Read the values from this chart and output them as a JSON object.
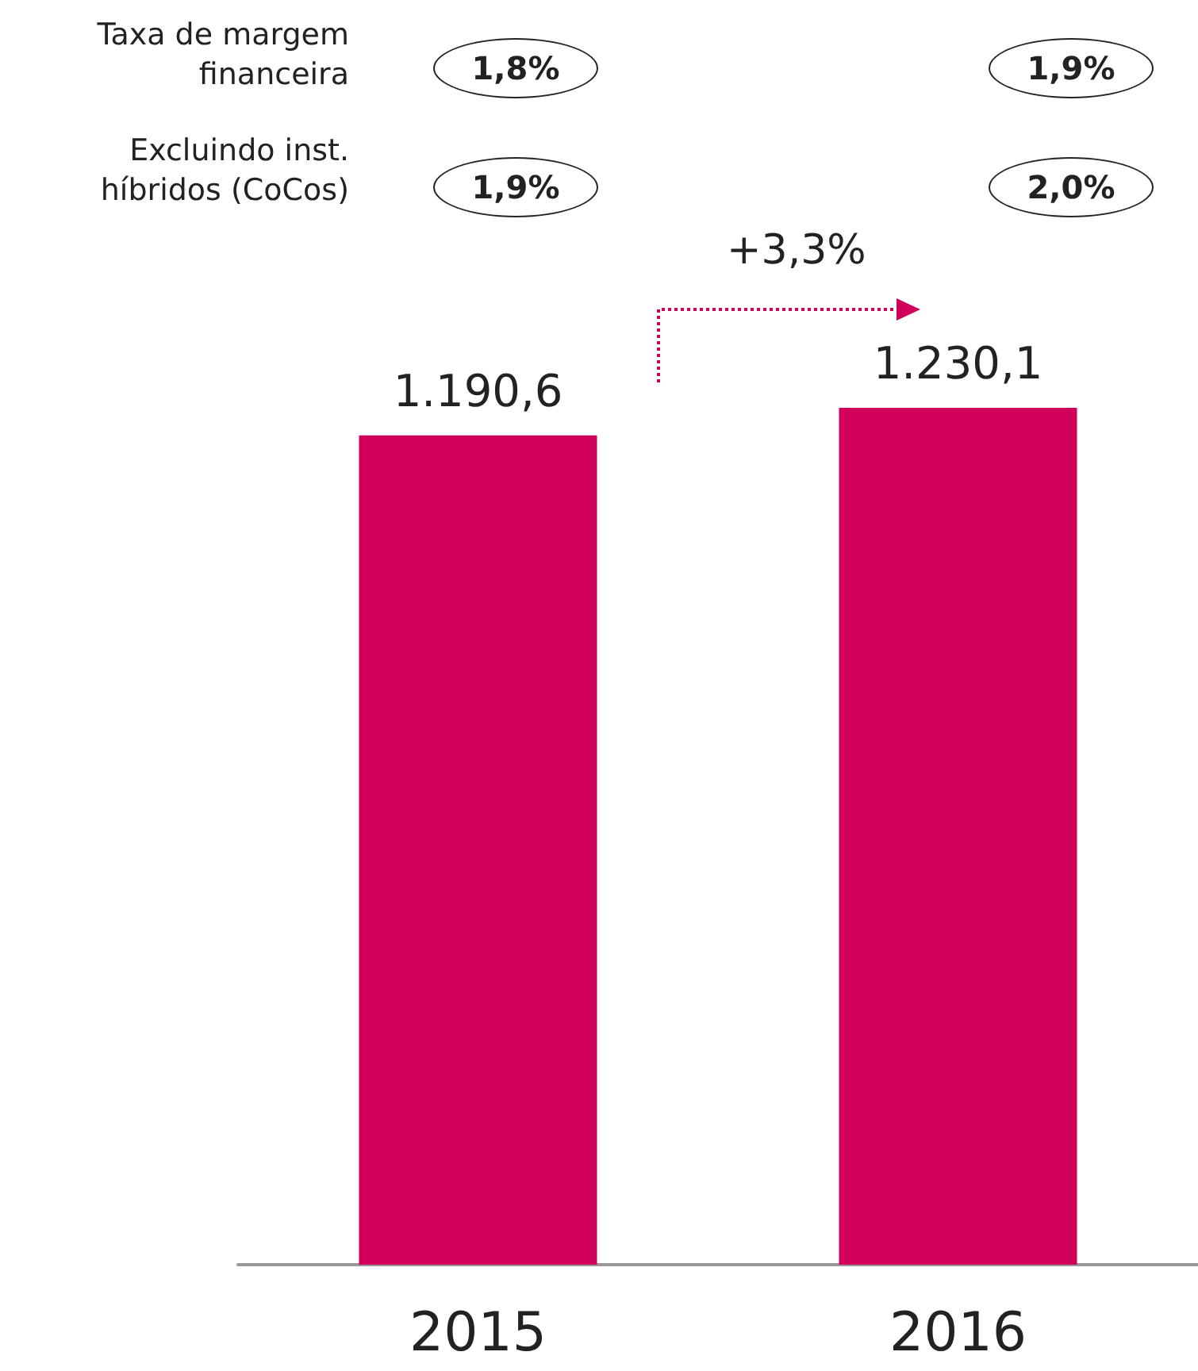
{
  "chart_data": {
    "type": "bar",
    "categories": [
      "2015",
      "2016"
    ],
    "values": [
      1190.6,
      1230.1
    ],
    "value_labels": [
      "1.190,6",
      "1.230,1"
    ],
    "color": "#d1005a",
    "annotations": [
      "Taxa  de margem financeira",
      "Excluindo inst. híbridos (CoCos)",
      "1,8%",
      "1,9%",
      "1,9%",
      "2,0%",
      "+3,3%"
    ]
  }
}
